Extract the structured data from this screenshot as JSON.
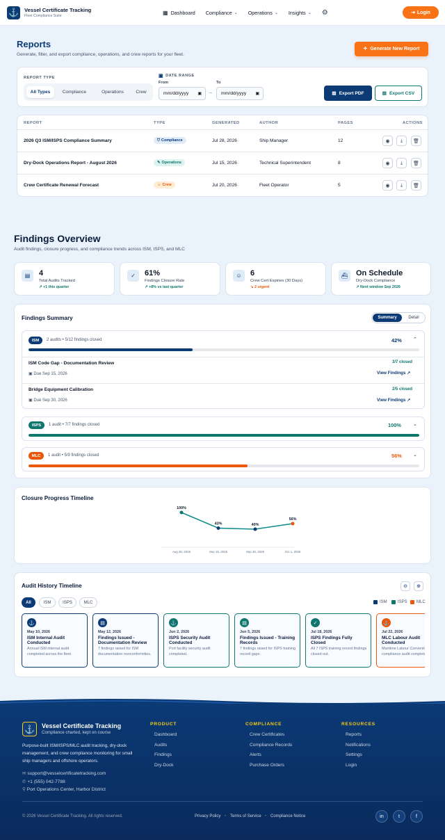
{
  "nav": {
    "brand_title": "Vessel Certificate Tracking",
    "brand_subtitle": "Fleet Compliance Suite",
    "links": [
      "Dashboard",
      "Compliance",
      "Operations",
      "Insights"
    ],
    "login": "Login"
  },
  "reports": {
    "title": "Reports",
    "subtitle": "Generate, filter, and export compliance, operations, and crew reports for your fleet.",
    "generate": "Generate New Report",
    "filters": {
      "type_label": "REPORT TYPE",
      "types": [
        "All Types",
        "Compliance",
        "Operations",
        "Crew"
      ],
      "selected": "All Types",
      "date_label": "DATE RANGE",
      "from_label": "From",
      "to_label": "To",
      "from_placeholder": "mm/dd/yyyy",
      "to_placeholder": "mm/dd/yyyy",
      "sep": "–",
      "export_pdf": "Export PDF",
      "export_csv": "Export CSV"
    },
    "columns": [
      "REPORT",
      "TYPE",
      "GENERATED",
      "AUTHOR",
      "PAGES",
      "ACTIONS"
    ],
    "rows": [
      {
        "report": "2026 Q3 ISM/ISPS Compliance Summary",
        "type": "Compliance",
        "generated": "Jul 28, 2026",
        "author": "Ship Manager",
        "pages": "12"
      },
      {
        "report": "Dry-Dock Operations Report - August 2026",
        "type": "Operations",
        "generated": "Jul 15, 2026",
        "author": "Technical Superintendent",
        "pages": "8"
      },
      {
        "report": "Crew Certificate Renewal Forecast",
        "type": "Crew",
        "generated": "Jul 20, 2026",
        "author": "Fleet Operator",
        "pages": "5"
      }
    ]
  },
  "findings": {
    "title": "Findings Overview",
    "subtitle": "Audit findings, closure progress, and compliance trends across ISM, ISPS, and MLC",
    "kpis": [
      {
        "value": "4",
        "label": "Total Audits Tracked",
        "trend": "+1 this quarter",
        "color": "#0f766e",
        "icon": "clipboard-icon"
      },
      {
        "value": "61%",
        "label": "Findings Closure Rate",
        "trend": "+8% vs last quarter",
        "color": "#0f766e",
        "icon": "check-circle-icon"
      },
      {
        "value": "6",
        "label": "Crew Cert Expiries (30 Days)",
        "trend": "2 urgent",
        "color": "#ea580c",
        "icon": "users-icon"
      },
      {
        "value": "On Schedule",
        "label": "Dry-Dock Compliance",
        "trend": "Next window Sep 2026",
        "color": "#0f766e",
        "icon": "ship-icon"
      }
    ],
    "summary": {
      "title": "Findings Summary",
      "toggle": [
        "Summary",
        "Detail"
      ],
      "groups": [
        {
          "name": "ISM",
          "meta": "2 audits • 5/12 findings closed",
          "pct": "42%",
          "progress": 0.42,
          "color": "#0b3a75",
          "items": [
            {
              "title": "ISM Code Gap - Documentation Review",
              "due": "Due Sep 15, 2026",
              "closed": "3/7 closed",
              "link": "View Findings"
            },
            {
              "title": "Bridge Equipment Calibration",
              "due": "Due Sep 30, 2026",
              "closed": "2/5 closed",
              "link": "View Findings"
            }
          ]
        },
        {
          "name": "ISPS",
          "meta": "1 audit • 7/7 findings closed",
          "pct": "100%",
          "progress": 1.0,
          "color": "#0f766e"
        },
        {
          "name": "MLC",
          "meta": "1 audit • 5/9 findings closed",
          "pct": "56%",
          "progress": 0.56,
          "color": "#ea580c"
        }
      ]
    }
  },
  "timeline": {
    "title": "Closure Progress Timeline"
  },
  "chart_data": {
    "type": "line",
    "title": "Closure Progress Timeline",
    "categories": [
      "Aug 30, 2026",
      "Sep 15, 2026",
      "Sep 30, 2026",
      "Oct 1, 2026"
    ],
    "values": [
      100,
      43,
      40,
      56
    ],
    "labels": [
      "100%",
      "43%",
      "40%",
      "56%"
    ],
    "point_colors": [
      "#0f766e",
      "#0b3a75",
      "#0b3a75",
      "#ea580c"
    ],
    "line_color": "#0f8a8a",
    "ylim": [
      0,
      100
    ]
  },
  "history": {
    "title": "Audit History Timeline",
    "filters": [
      "All",
      "ISM",
      "ISPS",
      "MLC"
    ],
    "legend": [
      {
        "name": "ISM",
        "color": "#0b3a75"
      },
      {
        "name": "ISPS",
        "color": "#0f766e"
      },
      {
        "name": "MLC",
        "color": "#ea580c"
      }
    ],
    "cards": [
      {
        "date": "May 10, 2026",
        "title": "ISM Internal Audit Conducted",
        "desc": "Annual ISM internal audit completed across the fleet.",
        "color": "#0b3a75",
        "icon": "anchor-icon"
      },
      {
        "date": "May 12, 2026",
        "title": "Findings Issued - Documentation Review",
        "desc": "7 findings raised for ISM documentation nonconformities.",
        "color": "#0b3a75",
        "icon": "document-icon"
      },
      {
        "date": "Jun 2, 2026",
        "title": "ISPS Security Audit Conducted",
        "desc": "Port facility security audit completed.",
        "color": "#0f766e",
        "icon": "anchor-icon"
      },
      {
        "date": "Jun 5, 2026",
        "title": "Findings Issued - Training Records",
        "desc": "7 findings raised for ISPS training record gaps.",
        "color": "#0f766e",
        "icon": "document-icon"
      },
      {
        "date": "Jul 18, 2026",
        "title": "ISPS Findings Fully Closed",
        "desc": "All 7 ISPS training record findings closed out.",
        "color": "#0f766e",
        "icon": "check-icon"
      },
      {
        "date": "Jul 22, 2026",
        "title": "MLC Labour Audit Conducted",
        "desc": "Maritime Labour Convention compliance audit completed.",
        "color": "#ea580c",
        "icon": "anchor-icon"
      }
    ]
  },
  "footer": {
    "brand": "Vessel Certificate Tracking",
    "tagline": "Compliance charted, kept on course",
    "about": "Purpose-built ISM/ISPS/MLC audit tracking, dry-dock management, and crew compliance monitoring for small ship managers and offshore operators.",
    "email": "support@vesselcertificatetracking.com",
    "phone": "+1 (555) 042-7788",
    "address": "Port Operations Center, Harbor District",
    "cols": [
      {
        "title": "PRODUCT",
        "links": [
          "Dashboard",
          "Audits",
          "Findings",
          "Dry-Dock"
        ]
      },
      {
        "title": "COMPLIANCE",
        "links": [
          "Crew Certificates",
          "Compliance Records",
          "Alerts",
          "Purchase Orders"
        ]
      },
      {
        "title": "RESOURCES",
        "links": [
          "Reports",
          "Notifications",
          "Settings",
          "Login"
        ]
      }
    ],
    "copyright": "© 2026 Vessel Certificate Tracking. All rights reserved.",
    "legal": [
      "Privacy Policy",
      "Terms of Service",
      "Compliance Notice"
    ],
    "legal_sep": "•",
    "social": [
      "in",
      "t",
      "f"
    ]
  }
}
